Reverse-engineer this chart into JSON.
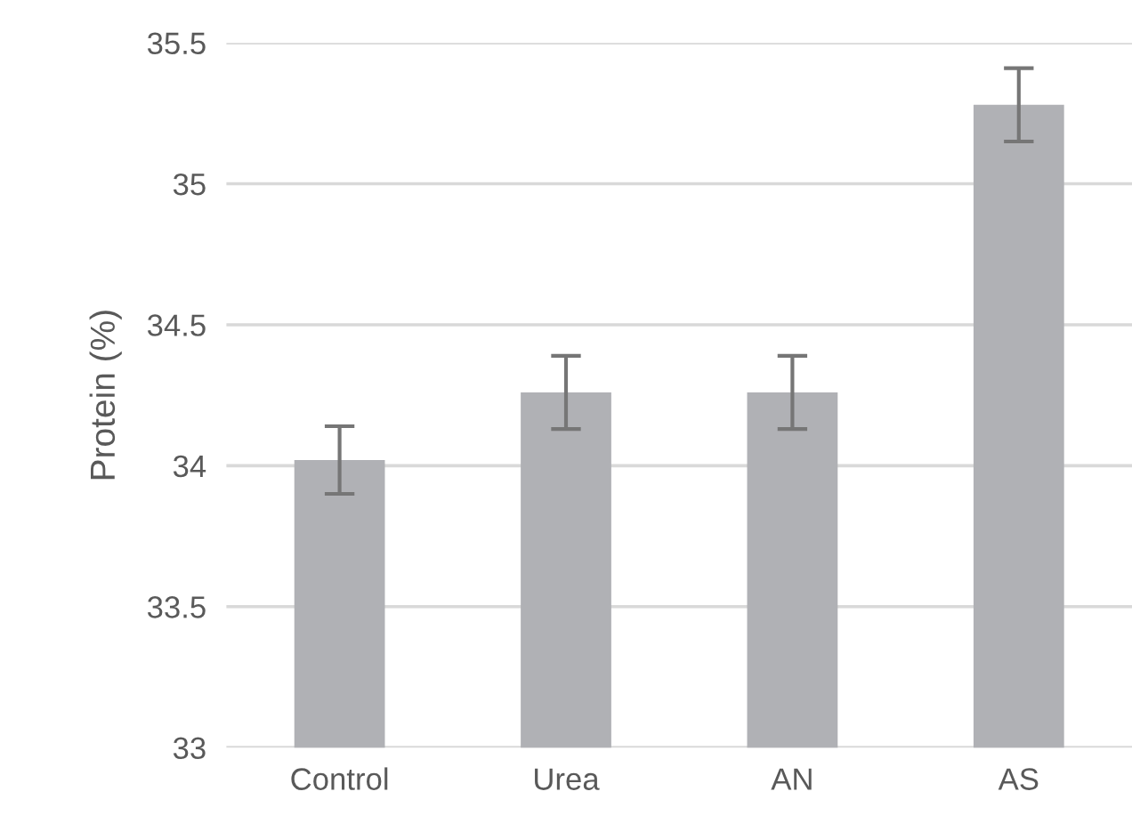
{
  "chart_data": {
    "type": "bar",
    "ylabel": "Protein (%)",
    "categories": [
      "Control",
      "Urea",
      "AN",
      "AS"
    ],
    "values": [
      34.02,
      34.26,
      34.26,
      35.28
    ],
    "errors": [
      0.12,
      0.13,
      0.13,
      0.13
    ],
    "color": "#b0b1b5",
    "ylim": [
      33,
      35.5
    ],
    "yticks": [
      33,
      33.5,
      34,
      34.5,
      35,
      35.5
    ],
    "grid": "y",
    "legend": false
  }
}
